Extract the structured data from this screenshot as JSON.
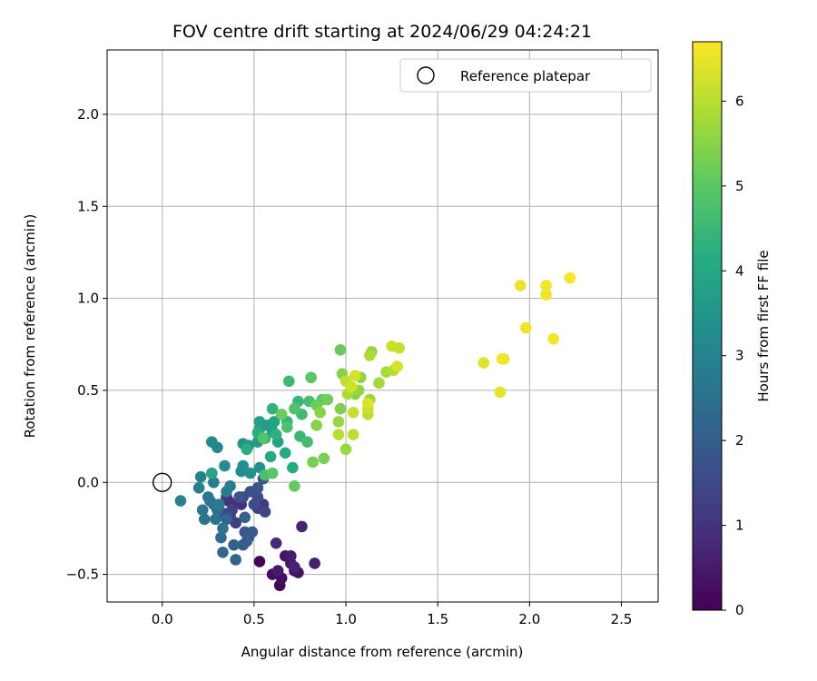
{
  "chart_data": {
    "type": "scatter",
    "title": "FOV centre drift starting at 2024/06/29 04:24:21",
    "xlabel": "Angular distance from reference (arcmin)",
    "ylabel": "Rotation from reference (arcmin)",
    "xlim": [
      -0.3,
      2.7
    ],
    "ylim": [
      -0.65,
      2.35
    ],
    "xticks": [
      0.0,
      0.5,
      1.0,
      1.5,
      2.0,
      2.5
    ],
    "xtick_labels": [
      "0.0",
      "0.5",
      "1.0",
      "1.5",
      "2.0",
      "2.5"
    ],
    "yticks": [
      -0.5,
      0.0,
      0.5,
      1.0,
      1.5,
      2.0
    ],
    "ytick_labels": [
      "−0.5",
      "0.0",
      "0.5",
      "1.0",
      "1.5",
      "2.0"
    ],
    "grid": true,
    "legend": {
      "position": "top-right",
      "entries": [
        "Reference platepar"
      ]
    },
    "reference_point": {
      "x": 0.0,
      "y": 0.0
    },
    "colorbar": {
      "label": "Hours from first FF file",
      "colormap": "viridis",
      "range": [
        0,
        6.7
      ],
      "ticks": [
        0,
        1,
        2,
        3,
        4,
        5,
        6
      ],
      "tick_labels": [
        "0",
        "1",
        "2",
        "3",
        "4",
        "5",
        "6"
      ]
    },
    "series": [
      {
        "points": [
          {
            "x": 0.53,
            "y": -0.43,
            "t": 0.05
          },
          {
            "x": 0.64,
            "y": -0.56,
            "t": 0.1
          },
          {
            "x": 0.6,
            "y": -0.5,
            "t": 0.2
          },
          {
            "x": 0.65,
            "y": -0.52,
            "t": 0.25
          },
          {
            "x": 0.72,
            "y": -0.48,
            "t": 0.3
          },
          {
            "x": 0.74,
            "y": -0.49,
            "t": 0.35
          },
          {
            "x": 0.67,
            "y": -0.4,
            "t": 0.4
          },
          {
            "x": 0.7,
            "y": -0.44,
            "t": 0.45
          },
          {
            "x": 0.63,
            "y": -0.48,
            "t": 0.5
          },
          {
            "x": 0.7,
            "y": -0.4,
            "t": 0.55
          },
          {
            "x": 0.83,
            "y": -0.44,
            "t": 0.6
          },
          {
            "x": 0.72,
            "y": -0.46,
            "t": 0.65
          },
          {
            "x": 0.76,
            "y": -0.24,
            "t": 0.7
          },
          {
            "x": 0.62,
            "y": -0.33,
            "t": 0.8
          },
          {
            "x": 0.36,
            "y": -0.1,
            "t": 0.85
          },
          {
            "x": 0.43,
            "y": -0.12,
            "t": 0.95
          },
          {
            "x": 0.39,
            "y": -0.12,
            "t": 1.0
          },
          {
            "x": 0.35,
            "y": -0.08,
            "t": 1.05
          },
          {
            "x": 0.55,
            "y": -0.12,
            "t": 1.1
          },
          {
            "x": 0.4,
            "y": -0.22,
            "t": 1.15
          },
          {
            "x": 0.52,
            "y": -0.14,
            "t": 1.25
          },
          {
            "x": 0.37,
            "y": -0.18,
            "t": 1.3
          },
          {
            "x": 0.38,
            "y": -0.15,
            "t": 1.35
          },
          {
            "x": 0.56,
            "y": -0.16,
            "t": 1.4
          },
          {
            "x": 0.34,
            "y": -0.17,
            "t": 1.45
          },
          {
            "x": 0.44,
            "y": -0.08,
            "t": 1.5
          },
          {
            "x": 0.5,
            "y": -0.12,
            "t": 1.55
          },
          {
            "x": 0.52,
            "y": -0.08,
            "t": 1.6
          },
          {
            "x": 0.48,
            "y": -0.05,
            "t": 1.65
          },
          {
            "x": 0.42,
            "y": -0.08,
            "t": 1.7
          },
          {
            "x": 0.52,
            "y": -0.03,
            "t": 1.75
          },
          {
            "x": 0.55,
            "y": 0.02,
            "t": 1.8
          },
          {
            "x": 0.45,
            "y": -0.27,
            "t": 1.85
          },
          {
            "x": 0.47,
            "y": -0.3,
            "t": 1.9
          },
          {
            "x": 0.49,
            "y": -0.27,
            "t": 1.95
          },
          {
            "x": 0.46,
            "y": -0.32,
            "t": 2.0
          },
          {
            "x": 0.44,
            "y": -0.34,
            "t": 2.05
          },
          {
            "x": 0.39,
            "y": -0.34,
            "t": 2.1
          },
          {
            "x": 0.45,
            "y": -0.19,
            "t": 2.15
          },
          {
            "x": 0.4,
            "y": -0.42,
            "t": 2.2
          },
          {
            "x": 0.33,
            "y": -0.38,
            "t": 2.25
          },
          {
            "x": 0.35,
            "y": -0.2,
            "t": 2.3
          },
          {
            "x": 0.32,
            "y": -0.3,
            "t": 2.35
          },
          {
            "x": 0.3,
            "y": -0.15,
            "t": 2.4
          },
          {
            "x": 0.28,
            "y": -0.12,
            "t": 2.45
          },
          {
            "x": 0.26,
            "y": -0.1,
            "t": 2.5
          },
          {
            "x": 0.33,
            "y": -0.25,
            "t": 2.55
          },
          {
            "x": 0.29,
            "y": -0.2,
            "t": 2.6
          },
          {
            "x": 0.23,
            "y": -0.2,
            "t": 2.6
          },
          {
            "x": 0.22,
            "y": -0.15,
            "t": 2.65
          },
          {
            "x": 0.25,
            "y": -0.08,
            "t": 2.7
          },
          {
            "x": 0.31,
            "y": -0.12,
            "t": 2.75
          },
          {
            "x": 0.35,
            "y": -0.05,
            "t": 2.8
          },
          {
            "x": 0.37,
            "y": -0.02,
            "t": 2.85
          },
          {
            "x": 0.28,
            "y": 0.0,
            "t": 2.9
          },
          {
            "x": 0.2,
            "y": -0.03,
            "t": 2.95
          },
          {
            "x": 0.21,
            "y": 0.03,
            "t": 3.0
          },
          {
            "x": 0.1,
            "y": -0.1,
            "t": 3.05
          },
          {
            "x": 0.3,
            "y": 0.19,
            "t": 3.1
          },
          {
            "x": 0.27,
            "y": 0.22,
            "t": 3.15
          },
          {
            "x": 0.34,
            "y": 0.09,
            "t": 3.2
          },
          {
            "x": 0.43,
            "y": 0.06,
            "t": 3.25
          },
          {
            "x": 0.44,
            "y": 0.09,
            "t": 3.3
          },
          {
            "x": 0.48,
            "y": 0.05,
            "t": 3.4
          },
          {
            "x": 0.53,
            "y": 0.08,
            "t": 3.45
          },
          {
            "x": 0.44,
            "y": 0.21,
            "t": 3.5
          },
          {
            "x": 0.47,
            "y": 0.2,
            "t": 3.55
          },
          {
            "x": 0.52,
            "y": 0.22,
            "t": 3.6
          },
          {
            "x": 0.53,
            "y": 0.29,
            "t": 3.65
          },
          {
            "x": 0.57,
            "y": 0.31,
            "t": 3.7
          },
          {
            "x": 0.6,
            "y": 0.28,
            "t": 3.75
          },
          {
            "x": 0.63,
            "y": 0.22,
            "t": 3.8
          },
          {
            "x": 0.53,
            "y": 0.33,
            "t": 3.85
          },
          {
            "x": 0.61,
            "y": 0.33,
            "t": 3.9
          },
          {
            "x": 0.27,
            "y": 0.05,
            "t": 3.95
          },
          {
            "x": 0.56,
            "y": 0.24,
            "t": 4.0
          },
          {
            "x": 0.59,
            "y": 0.14,
            "t": 4.05
          },
          {
            "x": 0.67,
            "y": 0.16,
            "t": 4.1
          },
          {
            "x": 0.71,
            "y": 0.08,
            "t": 4.15
          },
          {
            "x": 0.46,
            "y": 0.18,
            "t": 4.2
          },
          {
            "x": 0.52,
            "y": 0.27,
            "t": 4.25
          },
          {
            "x": 0.62,
            "y": 0.26,
            "t": 4.3
          },
          {
            "x": 0.6,
            "y": 0.4,
            "t": 4.35
          },
          {
            "x": 0.68,
            "y": 0.33,
            "t": 4.4
          },
          {
            "x": 0.74,
            "y": 0.44,
            "t": 4.45
          },
          {
            "x": 0.75,
            "y": 0.25,
            "t": 4.5
          },
          {
            "x": 0.69,
            "y": 0.55,
            "t": 4.55
          },
          {
            "x": 0.76,
            "y": 0.37,
            "t": 4.6
          },
          {
            "x": 0.79,
            "y": 0.22,
            "t": 4.65
          },
          {
            "x": 0.8,
            "y": 0.44,
            "t": 4.7
          },
          {
            "x": 0.56,
            "y": 0.04,
            "t": 4.75
          },
          {
            "x": 0.68,
            "y": 0.3,
            "t": 4.8
          },
          {
            "x": 0.72,
            "y": 0.4,
            "t": 4.85
          },
          {
            "x": 0.55,
            "y": 0.24,
            "t": 4.9
          },
          {
            "x": 0.6,
            "y": 0.05,
            "t": 4.95
          },
          {
            "x": 0.81,
            "y": 0.57,
            "t": 5.0
          },
          {
            "x": 0.87,
            "y": 0.45,
            "t": 5.05
          },
          {
            "x": 0.72,
            "y": -0.02,
            "t": 5.1
          },
          {
            "x": 0.97,
            "y": 0.72,
            "t": 5.15
          },
          {
            "x": 0.65,
            "y": 0.37,
            "t": 5.15
          },
          {
            "x": 0.84,
            "y": 0.42,
            "t": 5.2
          },
          {
            "x": 0.9,
            "y": 0.45,
            "t": 5.25
          },
          {
            "x": 0.82,
            "y": 0.11,
            "t": 5.3
          },
          {
            "x": 0.88,
            "y": 0.13,
            "t": 5.35
          },
          {
            "x": 0.97,
            "y": 0.4,
            "t": 5.4
          },
          {
            "x": 0.98,
            "y": 0.59,
            "t": 5.45
          },
          {
            "x": 1.05,
            "y": 0.48,
            "t": 5.45
          },
          {
            "x": 0.86,
            "y": 0.38,
            "t": 5.5
          },
          {
            "x": 0.84,
            "y": 0.31,
            "t": 5.5
          },
          {
            "x": 1.08,
            "y": 0.57,
            "t": 5.55
          },
          {
            "x": 1.14,
            "y": 0.71,
            "t": 5.6
          },
          {
            "x": 1.07,
            "y": 0.5,
            "t": 5.6
          },
          {
            "x": 0.96,
            "y": 0.33,
            "t": 5.65
          },
          {
            "x": 1.0,
            "y": 0.18,
            "t": 5.7
          },
          {
            "x": 1.13,
            "y": 0.45,
            "t": 5.7
          },
          {
            "x": 1.18,
            "y": 0.54,
            "t": 5.75
          },
          {
            "x": 1.22,
            "y": 0.6,
            "t": 5.8
          },
          {
            "x": 1.01,
            "y": 0.48,
            "t": 5.85
          },
          {
            "x": 1.13,
            "y": 0.69,
            "t": 5.9
          },
          {
            "x": 1.26,
            "y": 0.61,
            "t": 5.95
          },
          {
            "x": 0.96,
            "y": 0.26,
            "t": 6.0
          },
          {
            "x": 1.04,
            "y": 0.26,
            "t": 6.05
          },
          {
            "x": 1.12,
            "y": 0.37,
            "t": 6.05
          },
          {
            "x": 1.29,
            "y": 0.73,
            "t": 6.1
          },
          {
            "x": 1.0,
            "y": 0.55,
            "t": 6.1
          },
          {
            "x": 1.04,
            "y": 0.38,
            "t": 6.15
          },
          {
            "x": 1.12,
            "y": 0.4,
            "t": 6.15
          },
          {
            "x": 1.25,
            "y": 0.74,
            "t": 6.2
          },
          {
            "x": 1.03,
            "y": 0.52,
            "t": 6.25
          },
          {
            "x": 1.05,
            "y": 0.58,
            "t": 6.3
          },
          {
            "x": 1.28,
            "y": 0.63,
            "t": 6.3
          },
          {
            "x": 1.12,
            "y": 0.43,
            "t": 6.35
          },
          {
            "x": 1.75,
            "y": 0.65,
            "t": 6.4
          },
          {
            "x": 1.84,
            "y": 0.49,
            "t": 6.45
          },
          {
            "x": 1.86,
            "y": 0.67,
            "t": 6.45
          },
          {
            "x": 1.95,
            "y": 1.07,
            "t": 6.5
          },
          {
            "x": 1.98,
            "y": 0.84,
            "t": 6.55
          },
          {
            "x": 2.09,
            "y": 1.02,
            "t": 6.55
          },
          {
            "x": 2.09,
            "y": 1.07,
            "t": 6.6
          },
          {
            "x": 2.13,
            "y": 0.78,
            "t": 6.6
          },
          {
            "x": 2.22,
            "y": 1.11,
            "t": 6.65
          },
          {
            "x": 1.85,
            "y": 0.67,
            "t": 6.6
          }
        ]
      }
    ]
  }
}
